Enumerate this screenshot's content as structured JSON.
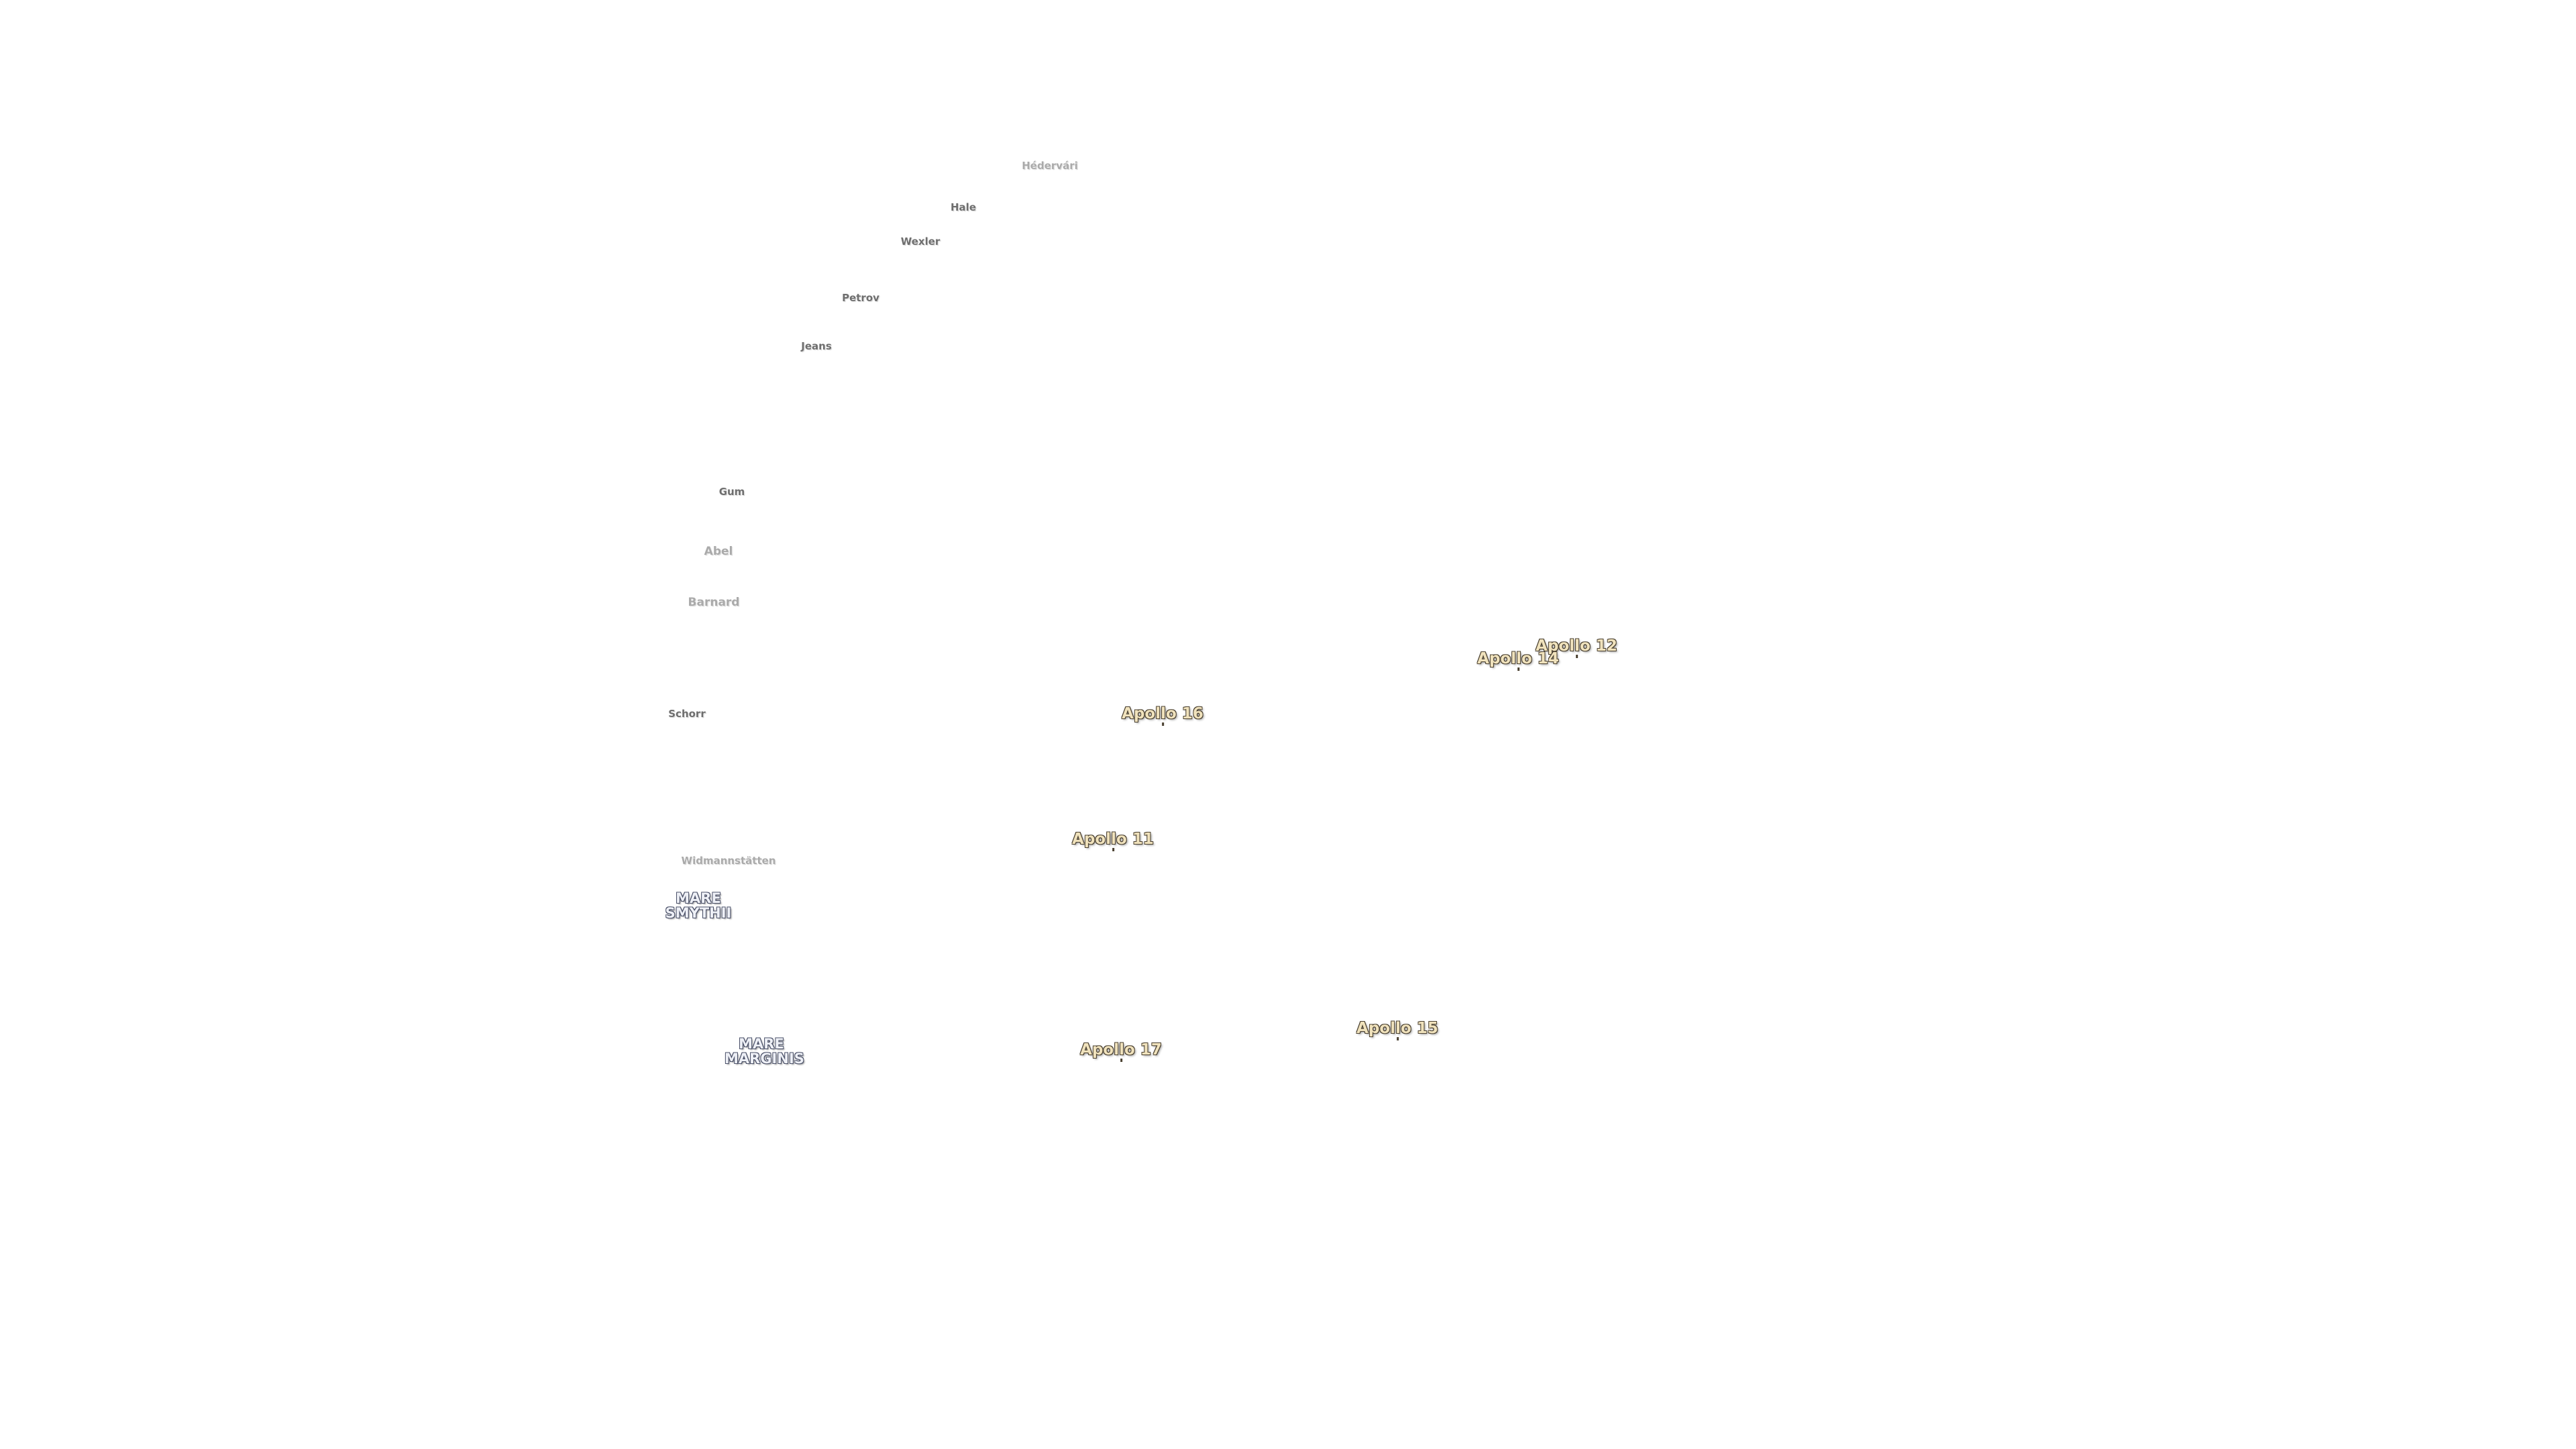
{
  "craters": [
    "Hédervári",
    "Hale",
    "Wexler",
    "Petrov",
    "Jeans",
    "Gum",
    "Abel",
    "Barnard",
    "Schorr",
    "Widmannstätten"
  ],
  "maria": [
    "MARE SMYTHII",
    "MARE MARGINIS"
  ],
  "landing_sites": [
    "Apollo 12",
    "Apollo 14",
    "Apollo 16",
    "Apollo 11",
    "Apollo 15",
    "Apollo 17"
  ]
}
